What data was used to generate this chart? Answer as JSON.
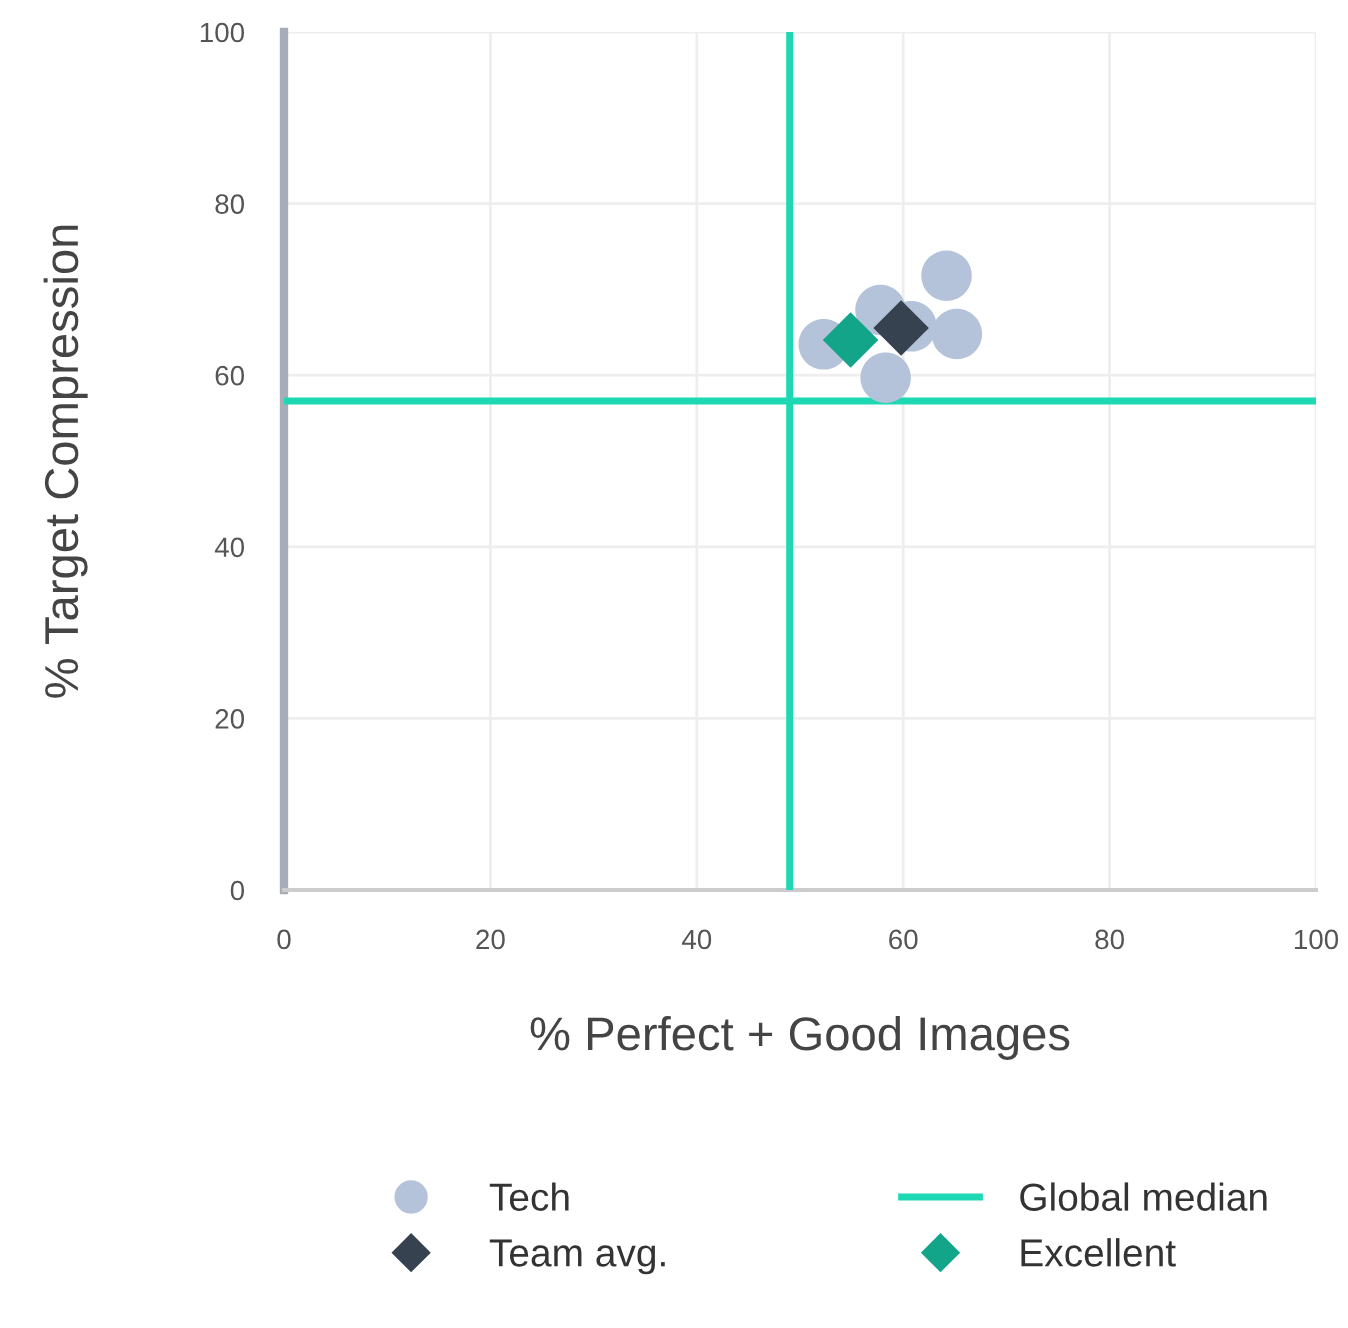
{
  "chart_data": {
    "type": "scatter",
    "xlabel": "% Perfect + Good Images",
    "ylabel": "% Target Compression",
    "xlim": [
      0,
      100
    ],
    "ylim": [
      0,
      100
    ],
    "xticks": [
      0,
      20,
      40,
      60,
      80,
      100
    ],
    "yticks": [
      0,
      20,
      40,
      60,
      80,
      100
    ],
    "grid": true,
    "legend": "bottom",
    "series": [
      {
        "name": "Tech",
        "color": "#b4c3d9",
        "marker": "circle",
        "x": [
          52.3,
          57.8,
          58.3,
          60.8,
          64.2,
          65.2
        ],
        "values": [
          63.6,
          67.6,
          59.7,
          65.7,
          71.6,
          64.8
        ]
      },
      {
        "name": "Team avg.",
        "color": "#36424f",
        "marker": "diamond",
        "x": [
          59.8
        ],
        "values": [
          65.5
        ]
      },
      {
        "name": "Excellent",
        "color": "#12a58a",
        "marker": "diamond",
        "x": [
          54.9
        ],
        "values": [
          64.1
        ]
      }
    ],
    "ref_lines": [
      {
        "axis": "x",
        "value": 49,
        "color": "#1ed8b4"
      },
      {
        "axis": "y",
        "value": 57,
        "label": "Global median",
        "color": "#1ed8b4"
      }
    ]
  }
}
